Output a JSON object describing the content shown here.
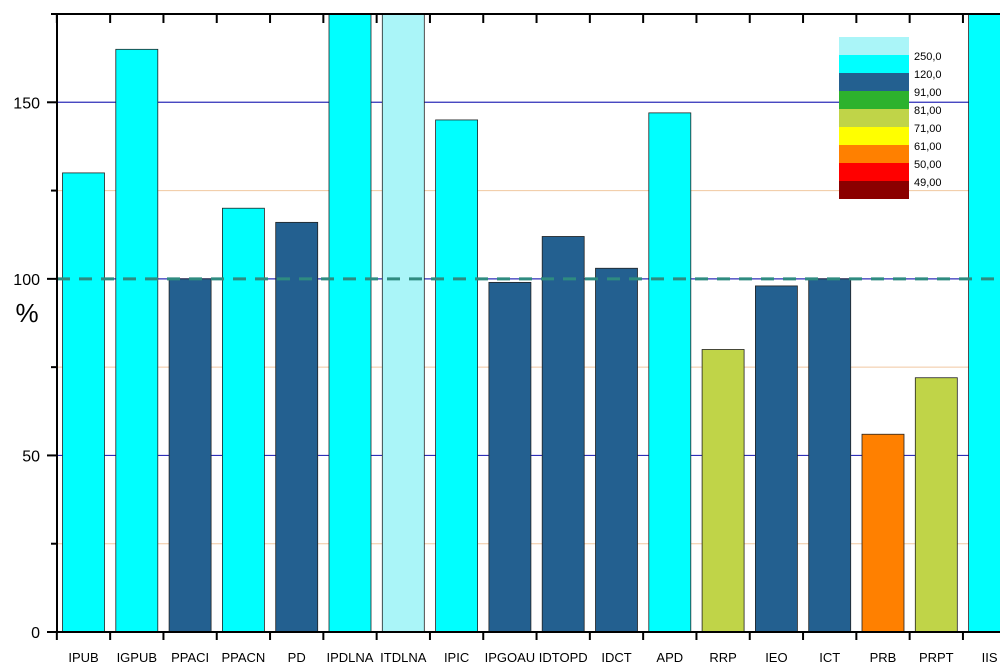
{
  "chart_data": {
    "type": "bar",
    "title": "",
    "xlabel": "",
    "ylabel": "%",
    "ylim": [
      0,
      175
    ],
    "yticks": [
      0,
      50,
      100,
      150
    ],
    "major_gridlines": [
      50,
      100,
      150
    ],
    "minor_gridlines": [
      25,
      75,
      125
    ],
    "reference_line": 100,
    "grid": true,
    "categories": [
      "IPUB",
      "IGPUB",
      "PPACI",
      "PPACN",
      "PD",
      "IPDLNA",
      "ITDLNA",
      "IPIC",
      "IPGOAU",
      "IDTOPD",
      "IDCT",
      "APD",
      "RRP",
      "IEO",
      "ICT",
      "PRB",
      "PRPT",
      "IIS"
    ],
    "values": [
      130,
      165,
      100,
      120,
      116,
      175,
      175,
      145,
      99,
      112,
      103,
      147,
      80,
      98,
      100,
      56,
      72,
      175
    ],
    "bar_colors": [
      "#00FFFF",
      "#00FFFF",
      "#236090",
      "#00FFFF",
      "#236090",
      "#00FFFF",
      "#AAF5F8",
      "#00FFFF",
      "#236090",
      "#236090",
      "#236090",
      "#00FFFF",
      "#C0D448",
      "#236090",
      "#236090",
      "#FF8000",
      "#C0D448",
      "#00FFFF"
    ],
    "legend": {
      "placement": "top-right",
      "entries": [
        {
          "label": "250,0",
          "color": "#AAF5F8"
        },
        {
          "label": "120,0",
          "color": "#00FFFF"
        },
        {
          "label": "91,00",
          "color": "#236090"
        },
        {
          "label": "81,00",
          "color": "#2DB22D"
        },
        {
          "label": "71,00",
          "color": "#C0D448"
        },
        {
          "label": "61,00",
          "color": "#FFFF00"
        },
        {
          "label": "50,00",
          "color": "#FF8000"
        },
        {
          "label": "49,00",
          "color": "#FF0000"
        },
        {
          "label": "",
          "color": "#8B0000"
        }
      ]
    },
    "colors": {
      "major_grid": "#2E2EB8",
      "minor_grid": "#F0C8A0",
      "reference": "#2E8B80"
    }
  }
}
